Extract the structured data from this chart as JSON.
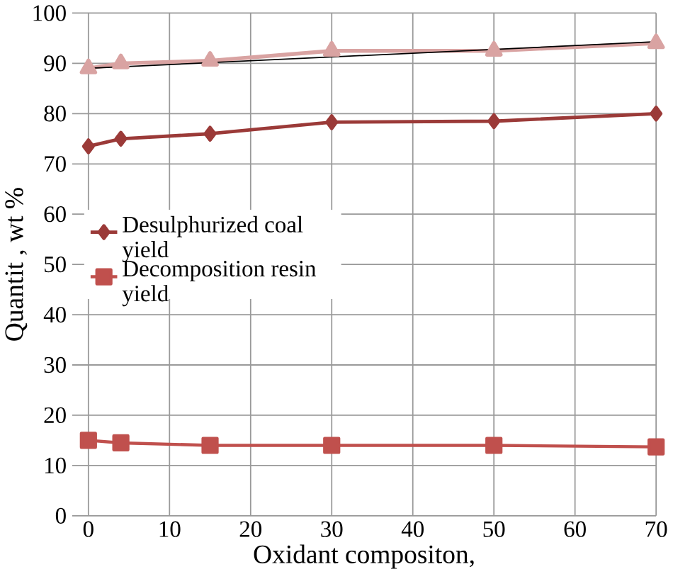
{
  "chart_data": {
    "type": "line",
    "xlabel": "Oxidant compositon,",
    "ylabel": "Quantit , wt %",
    "x": [
      0,
      4,
      15,
      30,
      50,
      70
    ],
    "series": [
      {
        "name": "Desulphurized coal yield",
        "color": "#9b3a38",
        "marker": "diamond",
        "values": [
          73.5,
          75,
          76,
          78.3,
          78.5,
          80
        ]
      },
      {
        "name": "Decomposition resin yield",
        "color": "#c0504d",
        "marker": "square",
        "values": [
          15,
          14.5,
          14,
          14,
          14,
          13.7
        ]
      },
      {
        "color": "#d9a3a2",
        "marker": "triangle",
        "values": [
          89,
          90,
          90.5,
          92.5,
          92.5,
          94
        ]
      },
      {
        "color": "#000000",
        "marker": "none",
        "x": [
          0,
          70
        ],
        "values": [
          89,
          94.3
        ]
      }
    ],
    "xlim": [
      -2,
      70
    ],
    "ylim": [
      0,
      100
    ],
    "xticks": [
      0,
      10,
      20,
      30,
      40,
      50,
      60,
      70
    ],
    "yticks": [
      0,
      10,
      20,
      30,
      40,
      50,
      60,
      70,
      80,
      90,
      100
    ],
    "grid": true,
    "legend": "left"
  }
}
